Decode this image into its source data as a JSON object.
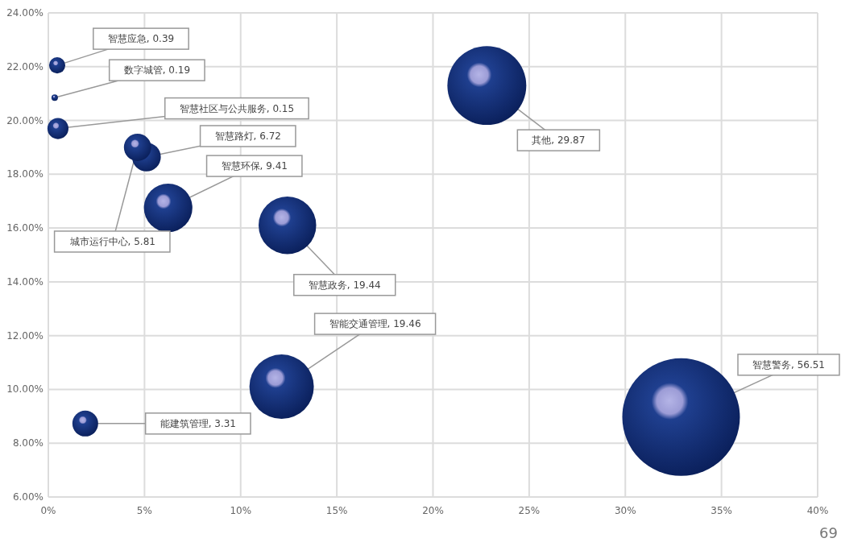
{
  "chart_data": {
    "type": "bubble",
    "x": [
      0.46,
      0.33,
      0.5,
      5.1,
      6.23,
      4.64,
      12.43,
      22.8,
      12.13,
      1.92,
      32.9
    ],
    "values": [
      22.05,
      20.85,
      19.7,
      18.64,
      16.75,
      19.0,
      16.1,
      21.3,
      10.1,
      8.73,
      8.97
    ],
    "sizes": [
      0.019,
      0.003,
      0.032,
      0.06,
      0.17,
      0.054,
      0.24,
      0.45,
      0.3,
      0.048,
      1
    ],
    "color": "#1f3f8f",
    "xlim": [
      0,
      40
    ],
    "ylim": [
      6,
      24
    ],
    "xticks": [
      {
        "value": 0,
        "label": "0%"
      },
      {
        "value": 5,
        "label": "5%"
      },
      {
        "value": 10,
        "label": "10%"
      },
      {
        "value": 15,
        "label": "15%"
      },
      {
        "value": 20,
        "label": "20%"
      },
      {
        "value": 25,
        "label": "25%"
      },
      {
        "value": 30,
        "label": "30%"
      },
      {
        "value": 35,
        "label": "35%"
      },
      {
        "value": 40,
        "label": "40%"
      }
    ],
    "yticks": [
      {
        "value": 6,
        "label": "6.00%"
      },
      {
        "value": 8,
        "label": "8.00%"
      },
      {
        "value": 10,
        "label": "10.00%"
      },
      {
        "value": 12,
        "label": "12.00%"
      },
      {
        "value": 14,
        "label": "14.00%"
      },
      {
        "value": 16,
        "label": "16.00%"
      },
      {
        "value": 18,
        "label": "18.00%"
      },
      {
        "value": 20,
        "label": "20.00%"
      },
      {
        "value": 22,
        "label": "22.00%"
      },
      {
        "value": 24,
        "label": "24.00%"
      }
    ],
    "grid": true,
    "annotations": [
      {
        "text": "智慧应急, 0.39",
        "x": 0.46,
        "y": 22.05
      },
      {
        "text": "数字城管, 0.19",
        "x": 0.33,
        "y": 20.85
      },
      {
        "text": "智慧社区与公共服务, 0.15",
        "x": 0.5,
        "y": 19.7
      },
      {
        "text": "智慧路灯, 6.72",
        "x": 5.1,
        "y": 18.64
      },
      {
        "text": "智慧环保, 9.41",
        "x": 6.23,
        "y": 16.75
      },
      {
        "text": "城市运行中心, 5.81",
        "x": 4.64,
        "y": 19.0
      },
      {
        "text": "智慧政务, 19.44",
        "x": 12.43,
        "y": 16.1
      },
      {
        "text": "其他, 29.87",
        "x": 22.8,
        "y": 21.3
      },
      {
        "text": "智能交通管理, 19.46",
        "x": 12.13,
        "y": 10.1
      },
      {
        "text": "能建筑管理, 3.31",
        "x": 1.92,
        "y": 8.73
      },
      {
        "text": "智慧警务, 56.51",
        "x": 32.9,
        "y": 8.97
      },
      "69"
    ]
  }
}
